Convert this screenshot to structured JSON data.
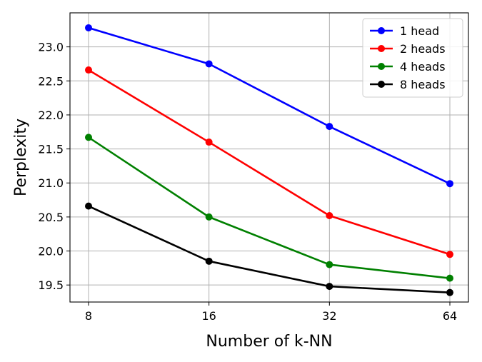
{
  "chart_data": {
    "type": "line",
    "title": "",
    "xlabel": "Number of k-NN",
    "ylabel": "Perplexity",
    "x": [
      8,
      16,
      32,
      64
    ],
    "x_tick_labels": [
      "8",
      "16",
      "32",
      "64"
    ],
    "x_scale": "log2",
    "ylim": [
      19.25,
      23.5
    ],
    "y_ticks": [
      19.5,
      20.0,
      20.5,
      21.0,
      21.5,
      22.0,
      22.5,
      23.0
    ],
    "y_tick_labels": [
      "19.5",
      "20.0",
      "20.5",
      "21.0",
      "21.5",
      "22.0",
      "22.5",
      "23.0"
    ],
    "grid": true,
    "legend_position": "top-right",
    "series": [
      {
        "name": "1 head",
        "color": "#0000ff",
        "values": [
          23.28,
          22.75,
          21.83,
          20.99
        ]
      },
      {
        "name": "2 heads",
        "color": "#ff0000",
        "values": [
          22.66,
          21.6,
          20.52,
          19.95
        ]
      },
      {
        "name": "4 heads",
        "color": "#008000",
        "values": [
          21.67,
          20.5,
          19.8,
          19.6
        ]
      },
      {
        "name": "8 heads",
        "color": "#000000",
        "values": [
          20.66,
          19.85,
          19.48,
          19.39
        ]
      }
    ]
  }
}
